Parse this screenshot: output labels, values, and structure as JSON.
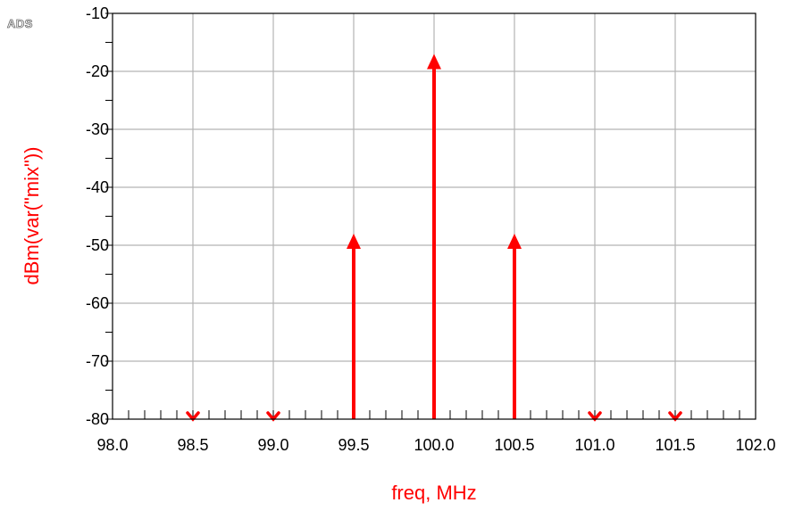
{
  "logo": "ADS",
  "colors": {
    "series": "#ff0000",
    "grid": "#b4b4b4",
    "axis": "#000000",
    "label": "#ff0000"
  },
  "chart_data": {
    "type": "stem",
    "title": "",
    "xlabel": "freq, MHz",
    "ylabel": "dBm(var(\"mix\"))",
    "xlim": [
      98.0,
      102.0
    ],
    "ylim": [
      -80,
      -10
    ],
    "xticks": [
      "98.0",
      "98.5",
      "99.0",
      "99.5",
      "100.0",
      "100.5",
      "101.0",
      "101.5",
      "102.0"
    ],
    "yticks": [
      "-10",
      "-20",
      "-30",
      "-40",
      "-50",
      "-60",
      "-70",
      "-80"
    ],
    "x_tick_values": [
      98.0,
      98.5,
      99.0,
      99.5,
      100.0,
      100.5,
      101.0,
      101.5,
      102.0
    ],
    "y_tick_values": [
      -10,
      -20,
      -30,
      -40,
      -50,
      -60,
      -70,
      -80
    ],
    "grid": true,
    "series": [
      {
        "x": [
          98.5,
          99.0,
          99.5,
          100.0,
          100.5,
          101.0,
          101.5
        ],
        "y": [
          -80,
          -80,
          -48,
          -17,
          -48,
          -80,
          -80
        ],
        "marker": [
          "below-range",
          "below-range",
          "arrow",
          "arrow",
          "arrow",
          "below-range",
          "below-range"
        ]
      }
    ]
  }
}
